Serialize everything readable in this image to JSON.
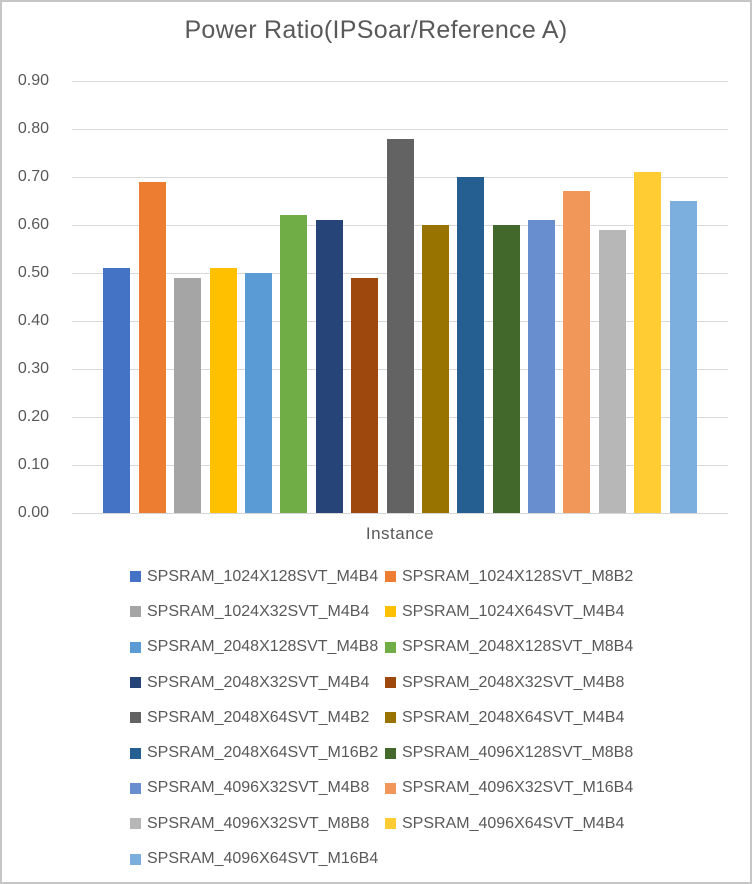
{
  "chart_data": {
    "type": "bar",
    "title": "Power Ratio(IPSoar/Reference A)",
    "xlabel": "Instance",
    "ylabel": "",
    "ylim": [
      0,
      0.9
    ],
    "ytick_step": 0.1,
    "yticks": [
      "0.90",
      "0.80",
      "0.70",
      "0.60",
      "0.50",
      "0.40",
      "0.30",
      "0.20",
      "0.10",
      "0.00"
    ],
    "grid": true,
    "legend_position": "bottom",
    "series": [
      {
        "name": "SPSRAM_1024X128SVT_M4B4",
        "value": 0.51,
        "color": "#4472C4"
      },
      {
        "name": "SPSRAM_1024X128SVT_M8B2",
        "value": 0.69,
        "color": "#ED7D31"
      },
      {
        "name": "SPSRAM_1024X32SVT_M4B4",
        "value": 0.49,
        "color": "#A5A5A5"
      },
      {
        "name": "SPSRAM_1024X64SVT_M4B4",
        "value": 0.51,
        "color": "#FFC000"
      },
      {
        "name": "SPSRAM_2048X128SVT_M4B8",
        "value": 0.5,
        "color": "#5B9BD5"
      },
      {
        "name": "SPSRAM_2048X128SVT_M8B4",
        "value": 0.62,
        "color": "#70AD47"
      },
      {
        "name": "SPSRAM_2048X32SVT_M4B4",
        "value": 0.61,
        "color": "#264478"
      },
      {
        "name": "SPSRAM_2048X32SVT_M4B8",
        "value": 0.49,
        "color": "#9E480E"
      },
      {
        "name": "SPSRAM_2048X64SVT_M4B2",
        "value": 0.78,
        "color": "#636363"
      },
      {
        "name": "SPSRAM_2048X64SVT_M4B4",
        "value": 0.6,
        "color": "#997300"
      },
      {
        "name": "SPSRAM_2048X64SVT_M16B2",
        "value": 0.7,
        "color": "#255E91"
      },
      {
        "name": "SPSRAM_4096X128SVT_M8B8",
        "value": 0.6,
        "color": "#43682B"
      },
      {
        "name": "SPSRAM_4096X32SVT_M4B8",
        "value": 0.61,
        "color": "#698ED0"
      },
      {
        "name": "SPSRAM_4096X32SVT_M16B4",
        "value": 0.67,
        "color": "#F1975A"
      },
      {
        "name": "SPSRAM_4096X32SVT_M8B8",
        "value": 0.59,
        "color": "#B7B7B7"
      },
      {
        "name": "SPSRAM_4096X64SVT_M4B4",
        "value": 0.71,
        "color": "#FFCD33"
      },
      {
        "name": "SPSRAM_4096X64SVT_M16B4",
        "value": 0.65,
        "color": "#7CAFDD"
      }
    ]
  },
  "style": {
    "text_color": "#595959",
    "grid_color": "#D9D9D9",
    "frame_border_color": "#C6C6C6",
    "background_color": "#FFFFFF"
  }
}
